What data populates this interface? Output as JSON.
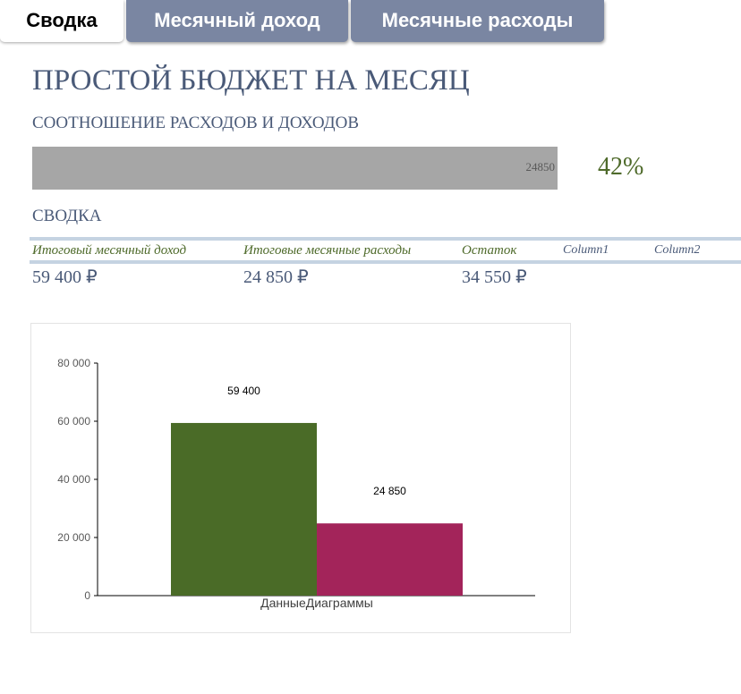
{
  "tabs": [
    {
      "label": "Сводка",
      "active": true
    },
    {
      "label": "Месячный доход",
      "active": false
    },
    {
      "label": "Месячные расходы",
      "active": false
    }
  ],
  "page_title": "ПРОСТОЙ БЮДЖЕТ НА МЕСЯЦ",
  "ratio": {
    "label": "СООТНОШЕНИЕ РАСХОДОВ И ДОХОДОВ",
    "bar_value": "24850",
    "percent": "42%",
    "percent_value": 0.42
  },
  "summary": {
    "title": "СВОДКА",
    "headers": [
      "Итоговый месячный доход",
      "Итоговые месячные расходы",
      "Остаток",
      "Column1",
      "Column2"
    ],
    "values": [
      "59 400 ₽",
      "24 850 ₽",
      "34 550 ₽",
      "",
      ""
    ]
  },
  "colors": {
    "accent": "#4e6a2a",
    "title": "#4a5a78",
    "tab_inactive": "#7a86a2",
    "income_bar": "#4a6b27",
    "expense_bar": "#a3245a",
    "ratio_bar": "#a6a6a6"
  },
  "chart_data": {
    "type": "bar",
    "categories": [
      "ДанныеДиаграммы"
    ],
    "series": [
      {
        "values": [
          59400
        ],
        "data_label": "59 400",
        "color": "#4a6b27"
      },
      {
        "values": [
          24850
        ],
        "data_label": "24 850",
        "color": "#a3245a"
      }
    ],
    "ylim": [
      0,
      80000
    ],
    "yticks": [
      "0",
      "20 000",
      "40 000",
      "60 000",
      "80 000"
    ],
    "ytick_values": [
      0,
      20000,
      40000,
      60000,
      80000
    ],
    "xlabel": "",
    "ylabel": "",
    "grid": false,
    "legend": "none"
  }
}
